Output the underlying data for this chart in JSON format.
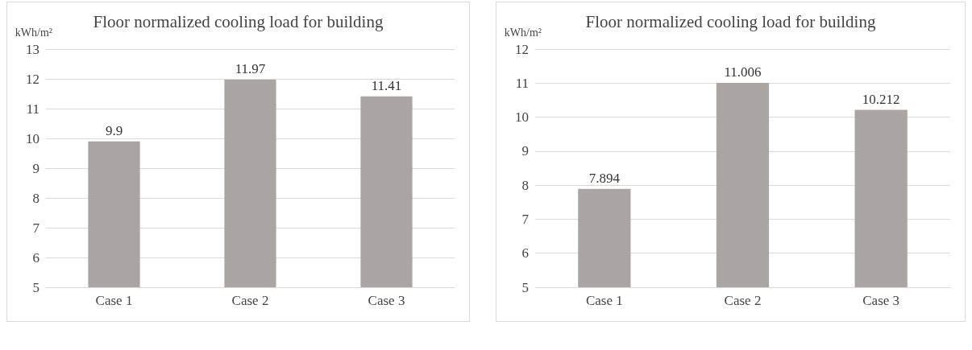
{
  "chart_data": [
    {
      "type": "bar",
      "title": "Floor normalized cooling load for building",
      "ylabel": "kWh/m²",
      "categories": [
        "Case 1",
        "Case 2",
        "Case 3"
      ],
      "values": [
        9.9,
        11.97,
        11.41
      ],
      "color": "#a9a5a4",
      "ylim": [
        5,
        13
      ],
      "yticks": [
        5,
        6,
        7,
        8,
        9,
        10,
        11,
        12,
        13
      ],
      "grid": "y",
      "data_labels": true
    },
    {
      "type": "bar",
      "title": "Floor normalized cooling load for building",
      "ylabel": "kWh/m²",
      "categories": [
        "Case 1",
        "Case 2",
        "Case 3"
      ],
      "values": [
        7.894,
        11.006,
        10.212
      ],
      "color": "#a9a5a4",
      "ylim": [
        5,
        12
      ],
      "yticks": [
        5,
        6,
        7,
        8,
        9,
        10,
        11,
        12
      ],
      "grid": "y",
      "data_labels": true
    }
  ]
}
